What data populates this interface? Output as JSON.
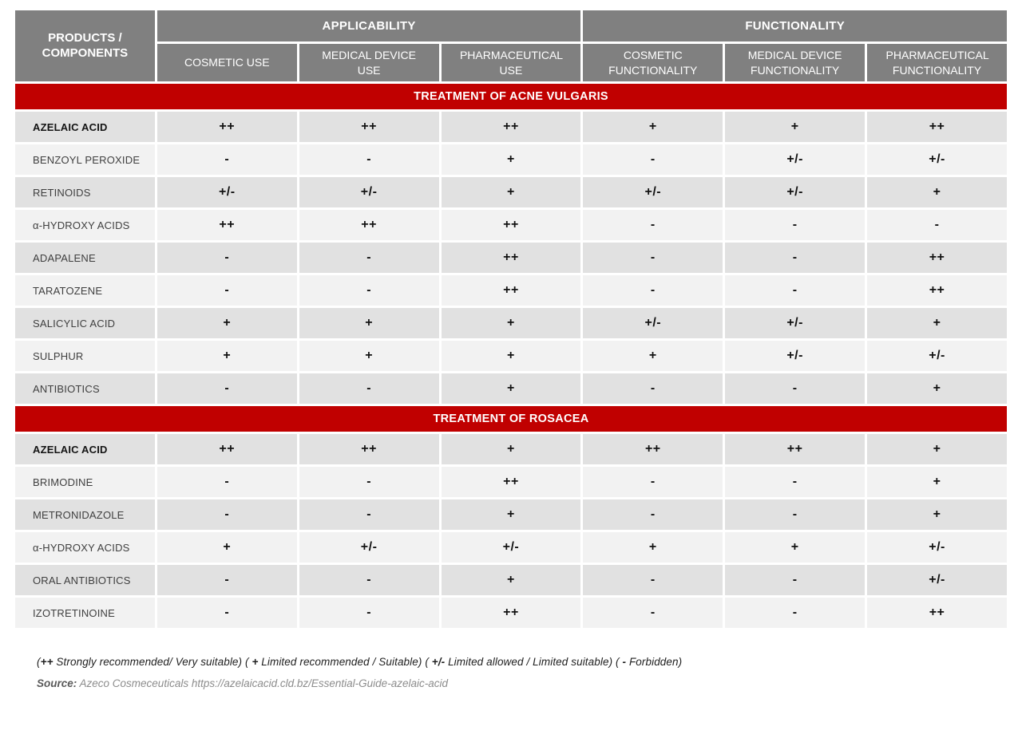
{
  "colors": {
    "header_gray": "#808080",
    "banner_red": "#c00000",
    "row_dark": "#e1e1e1",
    "row_light": "#f2f2f2"
  },
  "header": {
    "products_label": "PRODUCTS / COMPONENTS",
    "group_applicability": "APPLICABILITY",
    "group_functionality": "FUNCTIONALITY",
    "columns": [
      "COSMETIC USE",
      "MEDICAL DEVICE USE",
      "PHARMACEUTICAL USE",
      "COSMETIC FUNCTIONALITY",
      "MEDICAL DEVICE FUNCTIONALITY",
      "PHARMACEUTICAL FUNCTIONALITY"
    ]
  },
  "sections": [
    {
      "title": "TREATMENT OF ACNE VULGARIS",
      "rows": [
        {
          "label": "AZELAIC ACID",
          "bold": true,
          "values": [
            "++",
            "++",
            "++",
            "+",
            "+",
            "++"
          ]
        },
        {
          "label": "BENZOYL PEROXIDE",
          "bold": false,
          "values": [
            "-",
            "-",
            "+",
            "-",
            "+/-",
            "+/-"
          ]
        },
        {
          "label": "RETINOIDS",
          "bold": false,
          "values": [
            "+/-",
            "+/-",
            "+",
            "+/-",
            "+/-",
            "+"
          ]
        },
        {
          "label": "α-HYDROXY ACIDS",
          "bold": false,
          "values": [
            "++",
            "++",
            "++",
            "-",
            "-",
            "-"
          ]
        },
        {
          "label": "ADAPALENE",
          "bold": false,
          "values": [
            "-",
            "-",
            "++",
            "-",
            "-",
            "++"
          ]
        },
        {
          "label": "TARATOZENE",
          "bold": false,
          "values": [
            "-",
            "-",
            "++",
            "-",
            "-",
            "++"
          ]
        },
        {
          "label": "SALICYLIC ACID",
          "bold": false,
          "values": [
            "+",
            "+",
            "+",
            "+/-",
            "+/-",
            "+"
          ]
        },
        {
          "label": "SULPHUR",
          "bold": false,
          "values": [
            "+",
            "+",
            "+",
            "+",
            "+/-",
            "+/-"
          ]
        },
        {
          "label": "ANTIBIOTICS",
          "bold": false,
          "values": [
            "-",
            "-",
            "+",
            "-",
            "-",
            "+"
          ]
        }
      ]
    },
    {
      "title": "TREATMENT OF ROSACEA",
      "rows": [
        {
          "label": "AZELAIC ACID",
          "bold": true,
          "values": [
            "++",
            "++",
            "+",
            "++",
            "++",
            "+"
          ]
        },
        {
          "label": "BRIMODINE",
          "bold": false,
          "values": [
            "-",
            "-",
            "++",
            "-",
            "-",
            "+"
          ]
        },
        {
          "label": "METRONIDAZOLE",
          "bold": false,
          "values": [
            "-",
            "-",
            "+",
            "-",
            "-",
            "+"
          ]
        },
        {
          "label": "α-HYDROXY ACIDS",
          "bold": false,
          "values": [
            "+",
            "+/-",
            "+/-",
            "+",
            "+",
            "+/-"
          ]
        },
        {
          "label": "ORAL ANTIBIOTICS",
          "bold": false,
          "values": [
            "-",
            "-",
            "+",
            "-",
            "-",
            "+/-"
          ]
        },
        {
          "label": "IZOTRETINOINE",
          "bold": false,
          "values": [
            "-",
            "-",
            "++",
            "-",
            "-",
            "++"
          ]
        }
      ]
    }
  ],
  "footer": {
    "legend": [
      {
        "pre": "(",
        "sym": "++",
        "post": " Strongly recommended/ Very suitable) "
      },
      {
        "pre": "( ",
        "sym": "+",
        "post": " Limited recommended / Suitable) "
      },
      {
        "pre": "( ",
        "sym": "+/-",
        "post": " Limited allowed / Limited suitable) "
      },
      {
        "pre": "( ",
        "sym": "-",
        "post": " Forbidden)"
      }
    ],
    "source_label": "Source:",
    "source_text": " Azeco Cosmeceuticals https://azelaicacid.cld.bz/Essential-Guide-azelaic-acid"
  }
}
